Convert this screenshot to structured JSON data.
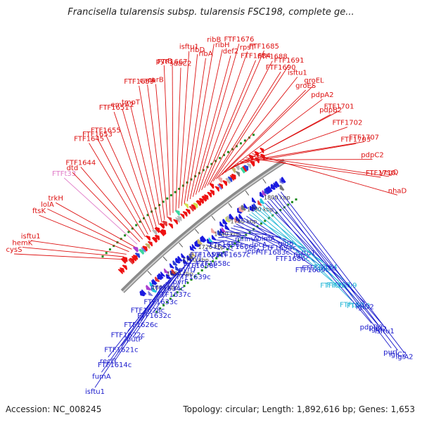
{
  "title": "Francisella tularensis subsp. tularensis FSC198, complete ge...",
  "footer": {
    "accession": "Accession: NC_008245",
    "summary": "Topology: circular; Length: 1,892,616 bp; Genes: 1,653"
  },
  "colors": {
    "plus_label": "#dd1111",
    "minus_label": "#1a1acc",
    "rna_label": "#22b6d6",
    "pseudo_label": "#e07cc8",
    "backbone": "#8a8a8a",
    "tick_dot": "#1f8a1f"
  },
  "kbp_labels": [
    "1660 kbp",
    "1680 kbp",
    "1700 kbp",
    "1720 kbp",
    "1740 kbp",
    "1760 kbp",
    "1780 kbp",
    "1800 kbp"
  ],
  "top_labels": [
    {
      "text": "cysS",
      "c": "plus"
    },
    {
      "text": "hemK",
      "c": "plus"
    },
    {
      "text": "isftu1",
      "c": "plus"
    },
    {
      "text": "ftsK",
      "c": "plus"
    },
    {
      "text": "lolA",
      "c": "plus"
    },
    {
      "text": "trkH",
      "c": "plus"
    },
    {
      "text": "FTFt33",
      "c": "pseudo"
    },
    {
      "text": "dtd",
      "c": "plus"
    },
    {
      "text": "FTF1644",
      "c": "plus"
    },
    {
      "text": "FTF1645",
      "c": "plus"
    },
    {
      "text": "FTF1653",
      "c": "plus"
    },
    {
      "text": "FTF1655",
      "c": "plus"
    },
    {
      "text": "FTF1651",
      "c": "plus"
    },
    {
      "text": "emrA2",
      "c": "plus"
    },
    {
      "text": "tmpT",
      "c": "plus"
    },
    {
      "text": "FTF1659",
      "c": "plus"
    },
    {
      "text": "carA",
      "c": "plus"
    },
    {
      "text": "carB",
      "c": "plus"
    },
    {
      "text": "pyrB",
      "c": "plus"
    },
    {
      "text": "FTF1667",
      "c": "plus"
    },
    {
      "text": "sdaC2",
      "c": "plus"
    },
    {
      "text": "isftu1",
      "c": "plus"
    },
    {
      "text": "ribD",
      "c": "plus"
    },
    {
      "text": "ribA",
      "c": "plus"
    },
    {
      "text": "ribB",
      "c": "plus"
    },
    {
      "text": "ribH",
      "c": "plus"
    },
    {
      "text": "def2",
      "c": "plus"
    },
    {
      "text": "FTF1676",
      "c": "plus"
    },
    {
      "text": "rpsT",
      "c": "plus"
    },
    {
      "text": "FTF1684",
      "c": "plus"
    },
    {
      "text": "FTF1685",
      "c": "plus"
    },
    {
      "text": "FTF1688",
      "c": "plus"
    },
    {
      "text": "FTF1690",
      "c": "plus"
    },
    {
      "text": "FTF1691",
      "c": "plus"
    },
    {
      "text": "isftu1",
      "c": "plus"
    },
    {
      "text": "groES",
      "c": "plus"
    },
    {
      "text": "groEL",
      "c": "plus"
    },
    {
      "text": "pdpA2",
      "c": "plus"
    },
    {
      "text": "pdpB2",
      "c": "plus"
    },
    {
      "text": "FTF1701",
      "c": "plus"
    },
    {
      "text": "FTF1702",
      "c": "plus"
    },
    {
      "text": "FTF1703",
      "c": "plus"
    },
    {
      "text": "FTF1707",
      "c": "plus"
    },
    {
      "text": "pdpC2",
      "c": "plus"
    },
    {
      "text": "FTF1710",
      "c": "plus"
    },
    {
      "text": "yegQ",
      "c": "plus"
    },
    {
      "text": "nhaD",
      "c": "plus"
    }
  ],
  "bottom_labels": [
    {
      "text": "isftu1",
      "c": "minus"
    },
    {
      "text": "fumA",
      "c": "minus"
    },
    {
      "text": "recG",
      "c": "minus"
    },
    {
      "text": "FTF1614c",
      "c": "minus"
    },
    {
      "text": "FTF1621c",
      "c": "minus"
    },
    {
      "text": "FTF1622c",
      "c": "minus"
    },
    {
      "text": "putP",
      "c": "minus"
    },
    {
      "text": "FTF1626c",
      "c": "minus"
    },
    {
      "text": "FTF1628c",
      "c": "minus"
    },
    {
      "text": "FTF1632c",
      "c": "minus"
    },
    {
      "text": "FTF1633c",
      "c": "minus"
    },
    {
      "text": "FTF1634c",
      "c": "minus"
    },
    {
      "text": "FTF1637c",
      "c": "minus"
    },
    {
      "text": "pyrF",
      "c": "minus"
    },
    {
      "text": "pyrD",
      "c": "minus"
    },
    {
      "text": "FTF1639c",
      "c": "minus"
    },
    {
      "text": "FTF1650c",
      "c": "minus"
    },
    {
      "text": "FTF1652c",
      "c": "minus"
    },
    {
      "text": "FTF1658c",
      "c": "minus"
    },
    {
      "text": "pyrC",
      "c": "minus"
    },
    {
      "text": "FTF1656c",
      "c": "minus"
    },
    {
      "text": "FTF1657c",
      "c": "minus"
    },
    {
      "text": "FTF1666c",
      "c": "minus"
    },
    {
      "text": "mnmA",
      "c": "minus"
    },
    {
      "text": "lepA",
      "c": "minus"
    },
    {
      "text": "lpcA",
      "c": "minus"
    },
    {
      "text": "olmA",
      "c": "minus"
    },
    {
      "text": "FTF1683c",
      "c": "minus"
    },
    {
      "text": "FTF1694c",
      "c": "minus"
    },
    {
      "text": "gidB",
      "c": "minus"
    },
    {
      "text": "FTF1686c",
      "c": "minus"
    },
    {
      "text": "fdh",
      "c": "minus"
    },
    {
      "text": "isftu1",
      "c": "minus"
    },
    {
      "text": "FTF1689c",
      "c": "minus"
    },
    {
      "text": "FTF1693c",
      "c": "minus"
    },
    {
      "text": "FTFt34",
      "c": "rna"
    },
    {
      "text": "FTFr08",
      "c": "rna"
    },
    {
      "text": "FTFt35",
      "c": "rna"
    },
    {
      "text": "FTFr09",
      "c": "rna"
    },
    {
      "text": "FTFt36",
      "c": "rna"
    },
    {
      "text": "FTFr10",
      "c": "rna"
    },
    {
      "text": "iglD2",
      "c": "minus"
    },
    {
      "text": "pdpD2",
      "c": "minus"
    },
    {
      "text": "iglB2",
      "c": "minus"
    },
    {
      "text": "isftu1",
      "c": "minus"
    },
    {
      "text": "purL",
      "c": "minus"
    },
    {
      "text": "iglC2",
      "c": "minus"
    },
    {
      "text": "iglA2",
      "c": "minus"
    }
  ]
}
